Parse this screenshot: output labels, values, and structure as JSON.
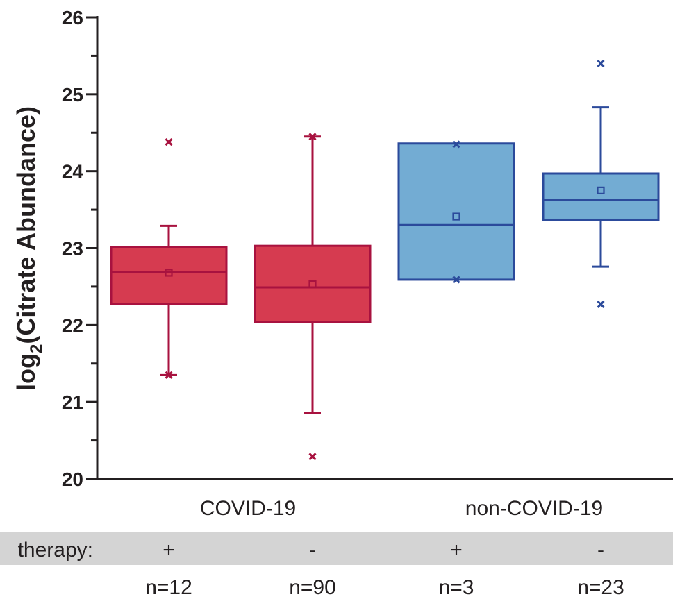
{
  "chart_data": {
    "type": "box",
    "ylabel_main": "log",
    "ylabel_sub": "2",
    "ylabel_rest": "(Citrate Abundance)",
    "ylim": [
      20,
      26
    ],
    "yticks": [
      20,
      21,
      22,
      23,
      24,
      25,
      26
    ],
    "groups": [
      "COVID-19",
      "non-COVID-19"
    ],
    "therapy_row_label": "therapy:",
    "colors": {
      "covid_fill": "#d63b50",
      "covid_stroke": "#a8123f",
      "noncovid_fill": "#73acd3",
      "noncovid_stroke": "#2b4a9b",
      "band": "#d4d4d4"
    },
    "boxes": [
      {
        "group": "COVID-19",
        "therapy": "+",
        "n": "n=12",
        "q1": 22.27,
        "median": 22.69,
        "q3": 23.01,
        "mean": 22.68,
        "whisker_low": 21.35,
        "whisker_high": 23.29,
        "outliers": [
          24.38,
          21.35
        ]
      },
      {
        "group": "COVID-19",
        "therapy": "-",
        "n": "n=90",
        "q1": 22.04,
        "median": 22.49,
        "q3": 23.03,
        "mean": 22.53,
        "whisker_low": 20.86,
        "whisker_high": 24.45,
        "outliers": [
          24.45,
          20.29
        ]
      },
      {
        "group": "non-COVID-19",
        "therapy": "+",
        "n": "n=3",
        "q1": 22.59,
        "median": 23.3,
        "q3": 24.36,
        "mean": 23.41,
        "whisker_low": null,
        "whisker_high": null,
        "outliers": [
          24.35,
          22.59
        ]
      },
      {
        "group": "non-COVID-19",
        "therapy": "-",
        "n": "n=23",
        "q1": 23.37,
        "median": 23.63,
        "q3": 23.97,
        "mean": 23.75,
        "whisker_low": 22.76,
        "whisker_high": 24.83,
        "outliers": [
          25.4,
          22.27
        ]
      }
    ]
  }
}
